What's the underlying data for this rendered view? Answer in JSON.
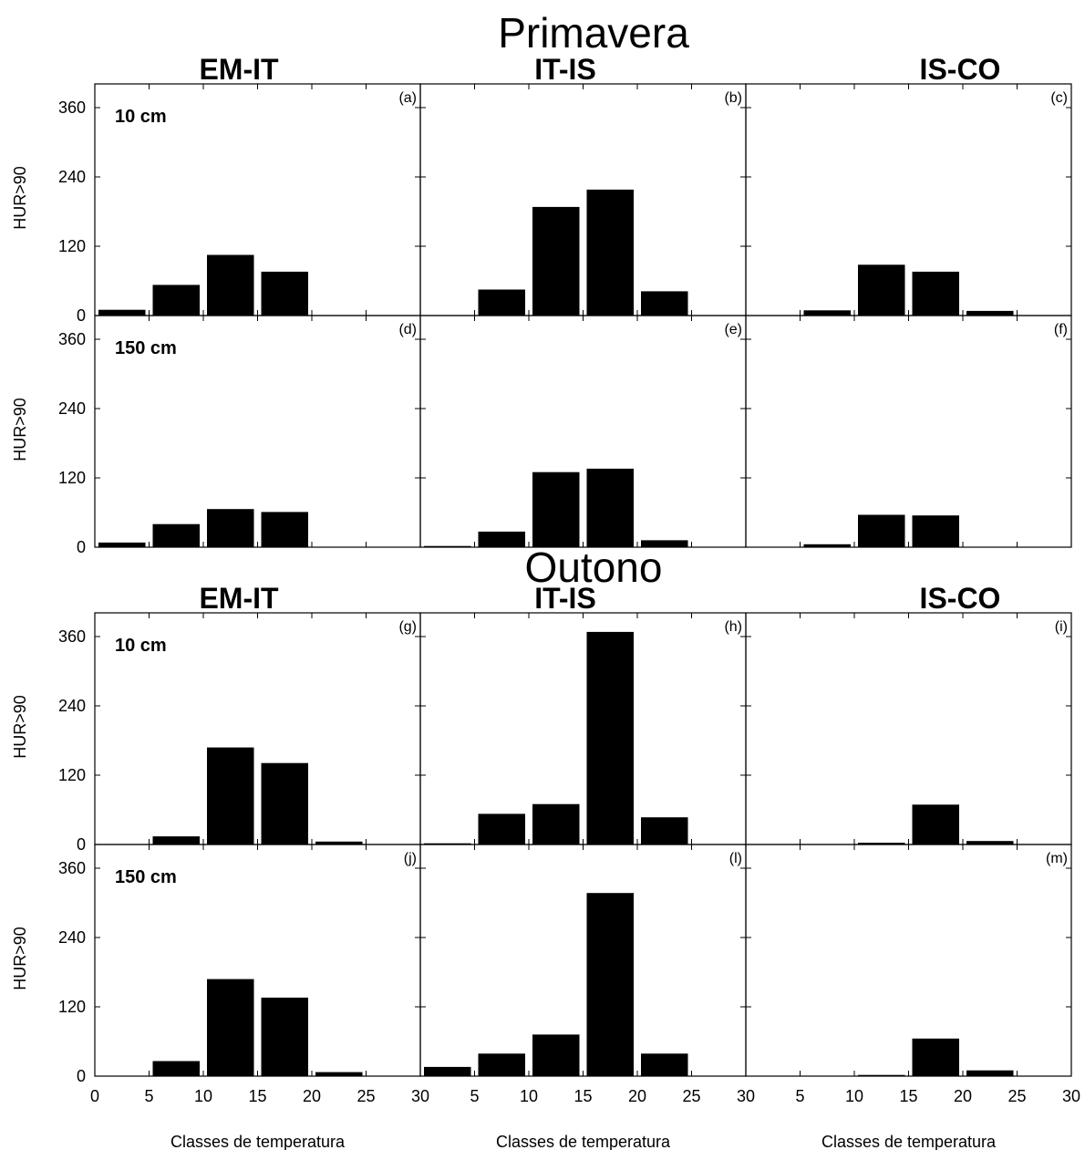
{
  "chart_data": {
    "type": "bar",
    "seasons": [
      "Primavera",
      "Outono"
    ],
    "columns": [
      "EM-IT",
      "IT-IS",
      "IS-CO"
    ],
    "depths": [
      "10 cm",
      "150 cm"
    ],
    "xlabel": "Classes de temperatura",
    "ylabel": "HUR>90",
    "xlim": [
      0,
      30
    ],
    "ylim": [
      0,
      360
    ],
    "xticks": [
      "0",
      "5",
      "10",
      "15",
      "20",
      "25",
      "30"
    ],
    "xticks_inner": [
      "5",
      "10",
      "15",
      "20",
      "25",
      "30"
    ],
    "yticks": [
      "0",
      "120",
      "240",
      "360"
    ],
    "bin_edges": [
      0,
      5,
      10,
      15,
      20,
      25,
      30
    ],
    "panels": [
      {
        "label": "(a)",
        "season": "Primavera",
        "column": "EM-IT",
        "depth": "10 cm",
        "values": [
          10,
          53,
          105,
          76,
          0,
          0
        ]
      },
      {
        "label": "(b)",
        "season": "Primavera",
        "column": "IT-IS",
        "depth": "10 cm",
        "values": [
          0,
          45,
          188,
          218,
          42,
          0
        ]
      },
      {
        "label": "(c)",
        "season": "Primavera",
        "column": "IS-CO",
        "depth": "10 cm",
        "values": [
          0,
          9,
          88,
          76,
          8,
          0
        ]
      },
      {
        "label": "(d)",
        "season": "Primavera",
        "column": "EM-IT",
        "depth": "150 cm",
        "values": [
          8,
          40,
          66,
          61,
          0,
          0
        ]
      },
      {
        "label": "(e)",
        "season": "Primavera",
        "column": "IT-IS",
        "depth": "150 cm",
        "values": [
          2,
          27,
          130,
          136,
          12,
          0
        ]
      },
      {
        "label": "(f)",
        "season": "Primavera",
        "column": "IS-CO",
        "depth": "150 cm",
        "values": [
          0,
          5,
          56,
          55,
          0,
          0
        ]
      },
      {
        "label": "(g)",
        "season": "Outono",
        "column": "EM-IT",
        "depth": "10 cm",
        "values": [
          0,
          14,
          168,
          141,
          5,
          0
        ]
      },
      {
        "label": "(h)",
        "season": "Outono",
        "column": "IT-IS",
        "depth": "10 cm",
        "values": [
          2,
          53,
          70,
          368,
          47,
          0
        ]
      },
      {
        "label": "(i)",
        "season": "Outono",
        "column": "IS-CO",
        "depth": "10 cm",
        "values": [
          0,
          0,
          3,
          69,
          6,
          0
        ]
      },
      {
        "label": "(j)",
        "season": "Outono",
        "column": "EM-IT",
        "depth": "150 cm",
        "values": [
          0,
          26,
          168,
          136,
          7,
          0
        ]
      },
      {
        "label": "(l)",
        "season": "Outono",
        "column": "IT-IS",
        "depth": "150 cm",
        "values": [
          16,
          39,
          72,
          317,
          39,
          0
        ]
      },
      {
        "label": "(m)",
        "season": "Outono",
        "column": "IS-CO",
        "depth": "150 cm",
        "values": [
          0,
          0,
          2,
          65,
          10,
          0
        ]
      }
    ]
  }
}
